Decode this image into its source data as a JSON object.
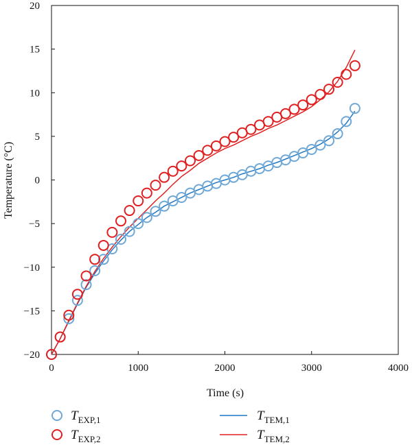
{
  "chart_data": {
    "type": "scatter",
    "xlabel": "Time (s)",
    "ylabel": "Temperature (°C)",
    "xlim": [
      0,
      4000
    ],
    "ylim": [
      -20,
      20
    ],
    "xticks": [
      0,
      1000,
      2000,
      3000,
      4000
    ],
    "yticks": [
      -20,
      -15,
      -10,
      -5,
      0,
      5,
      10,
      15,
      20
    ],
    "xtick_labels": [
      "0",
      "1000",
      "2000",
      "3000",
      "4000"
    ],
    "ytick_labels": [
      "−20",
      "−15",
      "−10",
      "−5",
      "0",
      "5",
      "10",
      "15",
      "20"
    ],
    "grid": false,
    "legend_position": "bottom",
    "series": [
      {
        "name": "T_EXP,1",
        "label_main": "T",
        "label_sub": "EXP,1",
        "kind": "markers",
        "color": "#6fa8d6",
        "x": [
          0,
          100,
          200,
          300,
          400,
          500,
          600,
          700,
          800,
          900,
          1000,
          1100,
          1200,
          1300,
          1400,
          1500,
          1600,
          1700,
          1800,
          1900,
          2000,
          2100,
          2200,
          2300,
          2400,
          2500,
          2600,
          2700,
          2800,
          2900,
          3000,
          3100,
          3200,
          3300,
          3400,
          3500
        ],
        "y": [
          -20,
          -18,
          -15.9,
          -13.8,
          -12.0,
          -10.4,
          -9.1,
          -7.9,
          -6.8,
          -5.9,
          -5.0,
          -4.3,
          -3.6,
          -3.0,
          -2.4,
          -2.0,
          -1.5,
          -1.1,
          -0.7,
          -0.4,
          0.0,
          0.3,
          0.6,
          1.0,
          1.3,
          1.6,
          2.0,
          2.3,
          2.7,
          3.1,
          3.5,
          4.0,
          4.5,
          5.3,
          6.7,
          8.2
        ]
      },
      {
        "name": "T_EXP,2",
        "label_main": "T",
        "label_sub": "EXP,2",
        "kind": "markers",
        "color": "#e02020",
        "x": [
          0,
          100,
          200,
          300,
          400,
          500,
          600,
          700,
          800,
          900,
          1000,
          1100,
          1200,
          1300,
          1400,
          1500,
          1600,
          1700,
          1800,
          1900,
          2000,
          2100,
          2200,
          2300,
          2400,
          2500,
          2600,
          2700,
          2800,
          2900,
          3000,
          3100,
          3200,
          3300,
          3400,
          3500
        ],
        "y": [
          -20,
          -18,
          -15.5,
          -13.1,
          -11.0,
          -9.1,
          -7.5,
          -6.0,
          -4.7,
          -3.5,
          -2.4,
          -1.5,
          -0.6,
          0.3,
          1.0,
          1.6,
          2.2,
          2.8,
          3.4,
          3.9,
          4.4,
          4.9,
          5.4,
          5.8,
          6.3,
          6.7,
          7.2,
          7.6,
          8.1,
          8.6,
          9.2,
          9.8,
          10.4,
          11.2,
          12.1,
          13.1
        ]
      },
      {
        "name": "T_TEM,1",
        "label_main": "T",
        "label_sub": "TEM,1",
        "kind": "line",
        "color": "#1f77c4",
        "x": [
          0,
          100,
          200,
          300,
          400,
          500,
          600,
          700,
          800,
          900,
          1000,
          1100,
          1200,
          1300,
          1400,
          1500,
          1600,
          1700,
          1800,
          1900,
          2000,
          2100,
          2200,
          2300,
          2400,
          2500,
          2600,
          2700,
          2800,
          2900,
          3000,
          3100,
          3200,
          3300,
          3400,
          3500
        ],
        "y": [
          -20,
          -18.2,
          -16.2,
          -14.2,
          -12.3,
          -10.7,
          -9.3,
          -8.0,
          -6.9,
          -5.9,
          -5.1,
          -4.3,
          -3.7,
          -3.0,
          -2.5,
          -2.0,
          -1.5,
          -1.1,
          -0.7,
          -0.3,
          0.0,
          0.3,
          0.7,
          1.0,
          1.3,
          1.7,
          2.0,
          2.4,
          2.8,
          3.2,
          3.6,
          4.1,
          4.7,
          5.5,
          6.5,
          7.9
        ]
      },
      {
        "name": "T_TEM,2",
        "label_main": "T",
        "label_sub": "TEM,2",
        "kind": "line",
        "color": "#e02020",
        "x": [
          0,
          100,
          200,
          300,
          400,
          500,
          600,
          700,
          800,
          900,
          1000,
          1100,
          1200,
          1300,
          1400,
          1500,
          1600,
          1700,
          1800,
          1900,
          2000,
          2100,
          2200,
          2300,
          2400,
          2500,
          2600,
          2700,
          2800,
          2900,
          3000,
          3100,
          3200,
          3300,
          3400,
          3500
        ],
        "y": [
          -20,
          -18.2,
          -16.1,
          -14.1,
          -12.2,
          -10.5,
          -9.0,
          -7.7,
          -6.5,
          -5.4,
          -4.4,
          -3.4,
          -2.4,
          -1.5,
          -0.5,
          0.4,
          1.1,
          1.9,
          2.5,
          3.1,
          3.6,
          4.0,
          4.5,
          5.0,
          5.4,
          5.9,
          6.3,
          6.8,
          7.3,
          7.8,
          8.4,
          9.2,
          10.1,
          11.3,
          12.9,
          14.9
        ]
      }
    ]
  }
}
